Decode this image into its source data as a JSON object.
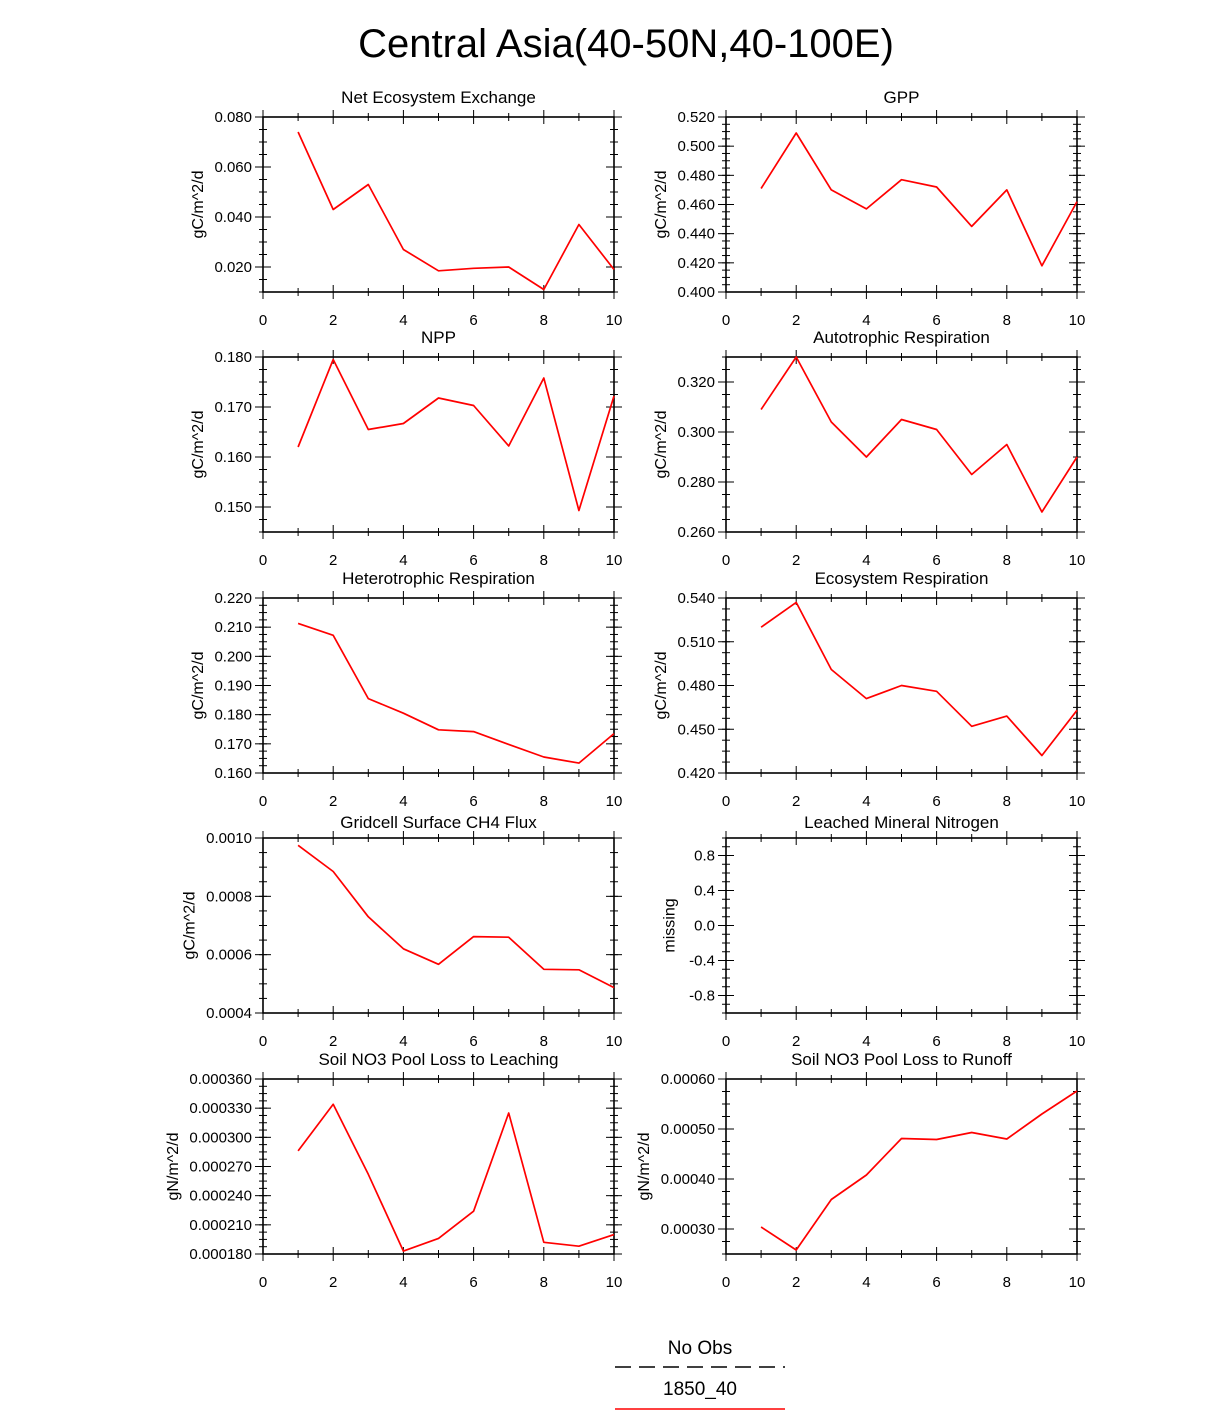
{
  "figure": {
    "title": "Central Asia(40-50N,40-100E)"
  },
  "legend": {
    "entries": [
      {
        "label": "No Obs",
        "color": "#000000",
        "dash": "dashed"
      },
      {
        "label": "1850_40",
        "color": "#ff0000",
        "dash": "solid"
      }
    ]
  },
  "chart_data": [
    {
      "type": "line",
      "title": "Net Ecosystem Exchange",
      "ylabel": "gC/m^2/d",
      "xlim": [
        0,
        10
      ],
      "ylim": [
        0.01,
        0.08
      ],
      "x_ticks": [
        "0",
        "2",
        "4",
        "6",
        "8",
        "10"
      ],
      "y_ticks": [
        "0.020",
        "0.040",
        "0.060",
        "0.080"
      ],
      "y_tick_values": [
        0.02,
        0.04,
        0.06,
        0.08
      ],
      "series": [
        {
          "color": "#ff0000",
          "x": [
            1,
            2,
            3,
            4,
            5,
            6,
            7,
            8,
            9,
            10
          ],
          "values": [
            0.074,
            0.043,
            0.053,
            0.027,
            0.0185,
            0.0195,
            0.02,
            0.011,
            0.037,
            0.019
          ]
        }
      ]
    },
    {
      "type": "line",
      "title": "GPP",
      "ylabel": "gC/m^2/d",
      "xlim": [
        0,
        10
      ],
      "ylim": [
        0.4,
        0.52
      ],
      "x_ticks": [
        "0",
        "2",
        "4",
        "6",
        "8",
        "10"
      ],
      "y_ticks": [
        "0.400",
        "0.420",
        "0.440",
        "0.460",
        "0.480",
        "0.500",
        "0.520"
      ],
      "y_tick_values": [
        0.4,
        0.42,
        0.44,
        0.46,
        0.48,
        0.5,
        0.52
      ],
      "series": [
        {
          "color": "#ff0000",
          "x": [
            1,
            2,
            3,
            4,
            5,
            6,
            7,
            8,
            9,
            10
          ],
          "values": [
            0.471,
            0.509,
            0.47,
            0.457,
            0.477,
            0.472,
            0.445,
            0.47,
            0.418,
            0.462
          ]
        }
      ]
    },
    {
      "type": "line",
      "title": "NPP",
      "ylabel": "gC/m^2/d",
      "xlim": [
        0,
        10
      ],
      "ylim": [
        0.145,
        0.18
      ],
      "x_ticks": [
        "0",
        "2",
        "4",
        "6",
        "8",
        "10"
      ],
      "y_ticks": [
        "0.150",
        "0.160",
        "0.170",
        "0.180"
      ],
      "y_tick_values": [
        0.15,
        0.16,
        0.17,
        0.18
      ],
      "series": [
        {
          "color": "#ff0000",
          "x": [
            1,
            2,
            3,
            4,
            5,
            6,
            7,
            8,
            9,
            10
          ],
          "values": [
            0.162,
            0.1795,
            0.1655,
            0.1667,
            0.1718,
            0.1703,
            0.1622,
            0.1758,
            0.1493,
            0.1722
          ]
        }
      ]
    },
    {
      "type": "line",
      "title": "Autotrophic Respiration",
      "ylabel": "gC/m^2/d",
      "xlim": [
        0,
        10
      ],
      "ylim": [
        0.26,
        0.33
      ],
      "x_ticks": [
        "0",
        "2",
        "4",
        "6",
        "8",
        "10"
      ],
      "y_ticks": [
        "0.260",
        "0.280",
        "0.300",
        "0.320"
      ],
      "y_tick_values": [
        0.26,
        0.28,
        0.3,
        0.32
      ],
      "series": [
        {
          "color": "#ff0000",
          "x": [
            1,
            2,
            3,
            4,
            5,
            6,
            7,
            8,
            9,
            10
          ],
          "values": [
            0.309,
            0.33,
            0.304,
            0.29,
            0.305,
            0.301,
            0.283,
            0.295,
            0.268,
            0.29
          ]
        }
      ]
    },
    {
      "type": "line",
      "title": "Heterotrophic Respiration",
      "ylabel": "gC/m^2/d",
      "xlim": [
        0,
        10
      ],
      "ylim": [
        0.16,
        0.22
      ],
      "x_ticks": [
        "0",
        "2",
        "4",
        "6",
        "8",
        "10"
      ],
      "y_ticks": [
        "0.160",
        "0.170",
        "0.180",
        "0.190",
        "0.200",
        "0.210",
        "0.220"
      ],
      "y_tick_values": [
        0.16,
        0.17,
        0.18,
        0.19,
        0.2,
        0.21,
        0.22
      ],
      "series": [
        {
          "color": "#ff0000",
          "x": [
            1,
            2,
            3,
            4,
            5,
            6,
            7,
            8,
            9,
            10
          ],
          "values": [
            0.2113,
            0.2072,
            0.1855,
            0.1805,
            0.1748,
            0.1742,
            0.1698,
            0.1655,
            0.1634,
            0.1735
          ]
        }
      ]
    },
    {
      "type": "line",
      "title": "Ecosystem Respiration",
      "ylabel": "gC/m^2/d",
      "xlim": [
        0,
        10
      ],
      "ylim": [
        0.42,
        0.54
      ],
      "x_ticks": [
        "0",
        "2",
        "4",
        "6",
        "8",
        "10"
      ],
      "y_ticks": [
        "0.420",
        "0.450",
        "0.480",
        "0.510",
        "0.540"
      ],
      "y_tick_values": [
        0.42,
        0.45,
        0.48,
        0.51,
        0.54
      ],
      "series": [
        {
          "color": "#ff0000",
          "x": [
            1,
            2,
            3,
            4,
            5,
            6,
            7,
            8,
            9,
            10
          ],
          "values": [
            0.52,
            0.537,
            0.491,
            0.471,
            0.48,
            0.476,
            0.452,
            0.459,
            0.432,
            0.463
          ]
        }
      ]
    },
    {
      "type": "line",
      "title": "Gridcell Surface CH4 Flux",
      "ylabel": "gC/m^2/d",
      "xlim": [
        0,
        10
      ],
      "ylim": [
        0.0004,
        0.001
      ],
      "x_ticks": [
        "0",
        "2",
        "4",
        "6",
        "8",
        "10"
      ],
      "y_ticks": [
        "0.0004",
        "0.0006",
        "0.0008",
        "0.0010"
      ],
      "y_tick_values": [
        0.0004,
        0.0006,
        0.0008,
        0.001
      ],
      "series": [
        {
          "color": "#ff0000",
          "x": [
            1,
            2,
            3,
            4,
            5,
            6,
            7,
            8,
            9,
            10
          ],
          "values": [
            0.000975,
            0.000885,
            0.00073,
            0.00062,
            0.000567,
            0.000662,
            0.00066,
            0.00055,
            0.000548,
            0.000487
          ]
        }
      ]
    },
    {
      "type": "line",
      "title": "Leached Mineral Nitrogen",
      "ylabel": "missing",
      "xlim": [
        0,
        10
      ],
      "ylim": [
        -1.0,
        1.0
      ],
      "x_ticks": [
        "0",
        "2",
        "4",
        "6",
        "8",
        "10"
      ],
      "y_ticks": [
        "-0.8",
        "-0.4",
        "0.0",
        "0.4",
        "0.8"
      ],
      "y_tick_values": [
        -0.8,
        -0.4,
        0.0,
        0.4,
        0.8
      ],
      "series": []
    },
    {
      "type": "line",
      "title": "Soil NO3 Pool Loss to Leaching",
      "ylabel": "gN/m^2/d",
      "xlim": [
        0,
        10
      ],
      "ylim": [
        0.00018,
        0.00036
      ],
      "x_ticks": [
        "0",
        "2",
        "4",
        "6",
        "8",
        "10"
      ],
      "y_ticks": [
        "0.000180",
        "0.000210",
        "0.000240",
        "0.000270",
        "0.000300",
        "0.000330",
        "0.000360"
      ],
      "y_tick_values": [
        0.00018,
        0.00021,
        0.00024,
        0.00027,
        0.0003,
        0.00033,
        0.00036
      ],
      "series": [
        {
          "color": "#ff0000",
          "x": [
            1,
            2,
            3,
            4,
            5,
            6,
            7,
            8,
            9,
            10
          ],
          "values": [
            0.000286,
            0.000334,
            0.000262,
            0.000183,
            0.000196,
            0.000224,
            0.000325,
            0.000192,
            0.000188,
            0.0002
          ]
        }
      ]
    },
    {
      "type": "line",
      "title": "Soil NO3 Pool Loss to Runoff",
      "ylabel": "gN/m^2/d",
      "xlim": [
        0,
        10
      ],
      "ylim": [
        0.00025,
        0.0006
      ],
      "x_ticks": [
        "0",
        "2",
        "4",
        "6",
        "8",
        "10"
      ],
      "y_ticks": [
        "0.00030",
        "0.00040",
        "0.00050",
        "0.00060"
      ],
      "y_tick_values": [
        0.0003,
        0.0004,
        0.0005,
        0.0006
      ],
      "series": [
        {
          "color": "#ff0000",
          "x": [
            1,
            2,
            3,
            4,
            5,
            6,
            7,
            8,
            9,
            10
          ],
          "values": [
            0.000304,
            0.000258,
            0.000359,
            0.000408,
            0.000481,
            0.000479,
            0.000493,
            0.00048,
            0.00053,
            0.000576
          ]
        }
      ]
    }
  ]
}
